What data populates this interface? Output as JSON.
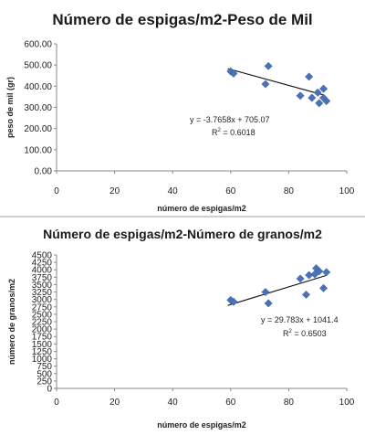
{
  "chart_data": [
    {
      "type": "scatter",
      "title": "Número de espigas/m2-Peso de Mil",
      "xlabel": "número de espigas/m2",
      "ylabel": "peso de mil (gr)",
      "xlim": [
        0,
        100
      ],
      "ylim": [
        0,
        600
      ],
      "xticks": [
        "0",
        "20",
        "40",
        "60",
        "80",
        "100"
      ],
      "yticks": [
        "0.00",
        "100.00",
        "200.00",
        "300.00",
        "400.00",
        "500.00",
        "600.00"
      ],
      "grid": false,
      "marker_color": "#4a72b8",
      "points": [
        {
          "x": 60,
          "y": 470
        },
        {
          "x": 61,
          "y": 460
        },
        {
          "x": 72,
          "y": 410
        },
        {
          "x": 73,
          "y": 495
        },
        {
          "x": 84,
          "y": 355
        },
        {
          "x": 87,
          "y": 445
        },
        {
          "x": 88,
          "y": 345
        },
        {
          "x": 90,
          "y": 370
        },
        {
          "x": 90.5,
          "y": 320
        },
        {
          "x": 92,
          "y": 388
        },
        {
          "x": 92,
          "y": 345
        },
        {
          "x": 93,
          "y": 330
        }
      ],
      "trendline": {
        "slope": -3.7658,
        "intercept": 705.07,
        "x_range": [
          59,
          92
        ]
      },
      "annotations": {
        "equation": "y = -3.7658x + 705.07",
        "r2_prefix": "R",
        "r2_value": " = 0.6018"
      }
    },
    {
      "type": "scatter",
      "title": "Número de espigas/m2-Número de granos/m2",
      "xlabel": "número de espigas/m2",
      "ylabel": "número de granos/m2",
      "xlim": [
        0,
        100
      ],
      "ylim": [
        0,
        4500
      ],
      "xticks": [
        "0",
        "20",
        "40",
        "60",
        "80",
        "100"
      ],
      "yticks": [
        "0",
        "250",
        "500",
        "750",
        "1000",
        "1250",
        "1500",
        "1750",
        "2000",
        "2250",
        "2500",
        "2750",
        "3000",
        "3250",
        "3500",
        "3750",
        "4000",
        "4250",
        "4500"
      ],
      "grid": false,
      "marker_color": "#4a72b8",
      "points": [
        {
          "x": 60,
          "y": 2980
        },
        {
          "x": 61,
          "y": 2920
        },
        {
          "x": 72,
          "y": 3250
        },
        {
          "x": 73,
          "y": 2870
        },
        {
          "x": 84,
          "y": 3700
        },
        {
          "x": 86,
          "y": 3160
        },
        {
          "x": 87,
          "y": 3820
        },
        {
          "x": 89,
          "y": 3850
        },
        {
          "x": 89.5,
          "y": 4050
        },
        {
          "x": 90.5,
          "y": 3950
        },
        {
          "x": 92,
          "y": 3380
        },
        {
          "x": 93,
          "y": 3920
        }
      ],
      "trendline": {
        "slope": 29.783,
        "intercept": 1041.4,
        "x_range": [
          59,
          93
        ]
      },
      "annotations": {
        "equation": "y = 29.783x + 1041.4",
        "r2_prefix": "R",
        "r2_value": " = 0.6503"
      }
    }
  ]
}
